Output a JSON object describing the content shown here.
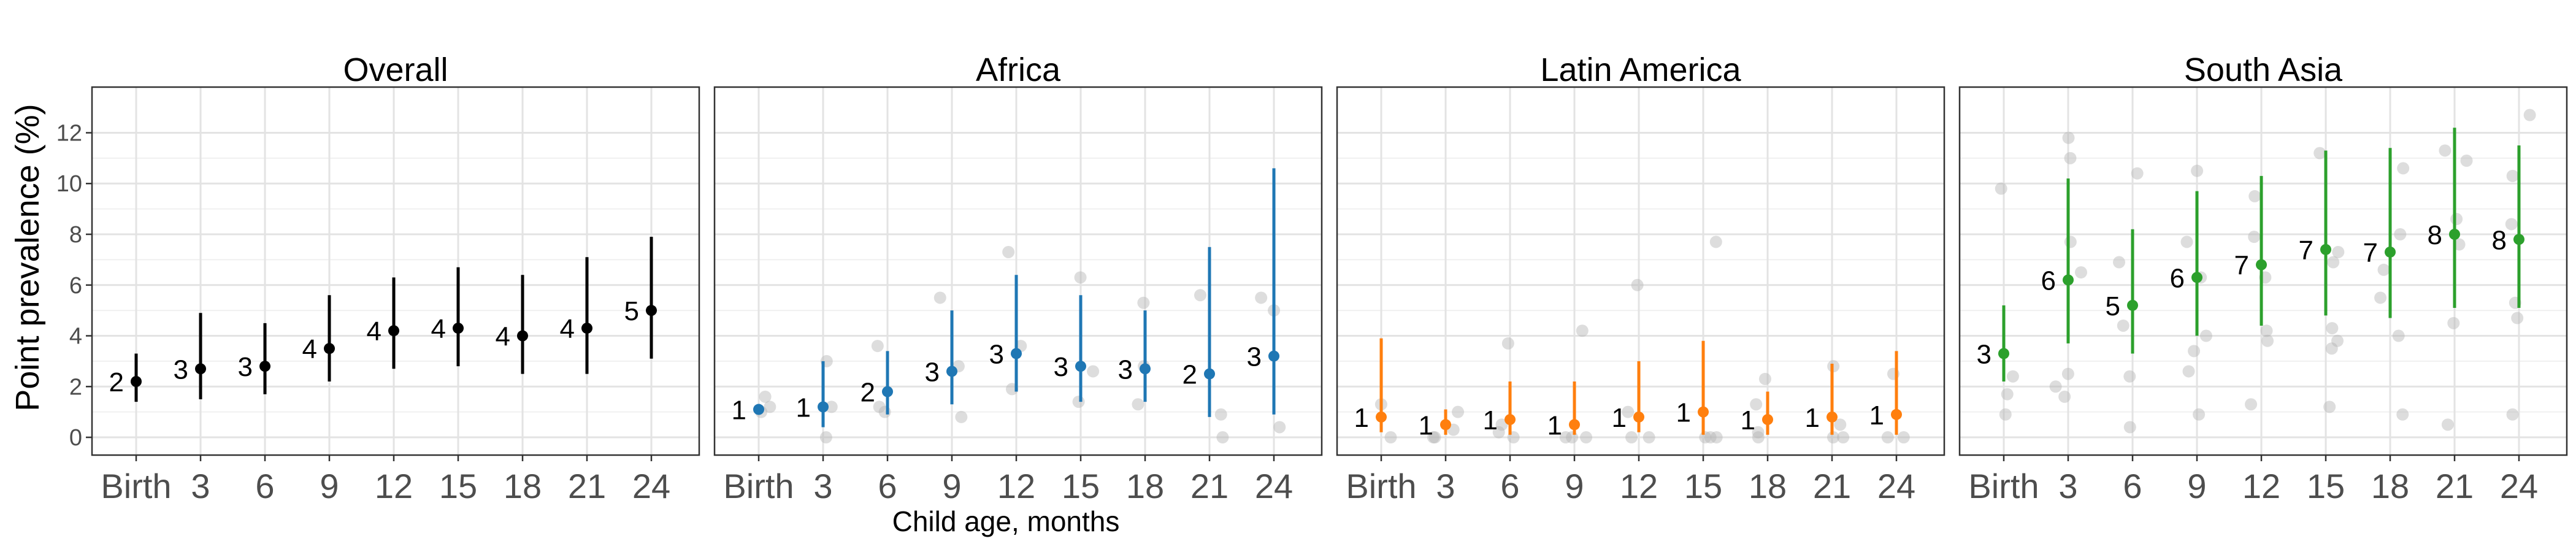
{
  "chart_data": {
    "type": "scatter",
    "ylabel": "Point prevalence (%)",
    "xlabel": "Child age, months",
    "ylim": [
      -0.7,
      13.8
    ],
    "yticks": [
      0,
      2,
      4,
      6,
      8,
      10,
      12
    ],
    "categories": [
      "Birth",
      "3",
      "6",
      "9",
      "12",
      "15",
      "18",
      "21",
      "24"
    ],
    "grid": true,
    "legend": "none",
    "panels": [
      {
        "title": "Overall",
        "color": "#000000",
        "points": [
          {
            "x": "Birth",
            "y": 2.2,
            "lo": 1.4,
            "hi": 3.3,
            "label": "2"
          },
          {
            "x": "3",
            "y": 2.7,
            "lo": 1.5,
            "hi": 4.9,
            "label": "3"
          },
          {
            "x": "6",
            "y": 2.8,
            "lo": 1.7,
            "hi": 4.5,
            "label": "3"
          },
          {
            "x": "9",
            "y": 3.5,
            "lo": 2.2,
            "hi": 5.6,
            "label": "4"
          },
          {
            "x": "12",
            "y": 4.2,
            "lo": 2.7,
            "hi": 6.3,
            "label": "4"
          },
          {
            "x": "15",
            "y": 4.3,
            "lo": 2.8,
            "hi": 6.7,
            "label": "4"
          },
          {
            "x": "18",
            "y": 4.0,
            "lo": 2.5,
            "hi": 6.4,
            "label": "4"
          },
          {
            "x": "21",
            "y": 4.3,
            "lo": 2.5,
            "hi": 7.1,
            "label": "4"
          },
          {
            "x": "24",
            "y": 5.0,
            "lo": 3.1,
            "hi": 7.9,
            "label": "5"
          }
        ],
        "sites": []
      },
      {
        "title": "Africa",
        "color": "#1f77b4",
        "points": [
          {
            "x": "Birth",
            "y": 1.1,
            "lo": 0.9,
            "hi": 1.3,
            "label": "1"
          },
          {
            "x": "3",
            "y": 1.2,
            "lo": 0.4,
            "hi": 3.0,
            "label": "1"
          },
          {
            "x": "6",
            "y": 1.8,
            "lo": 0.9,
            "hi": 3.4,
            "label": "2"
          },
          {
            "x": "9",
            "y": 2.6,
            "lo": 1.3,
            "hi": 5.0,
            "label": "3"
          },
          {
            "x": "12",
            "y": 3.3,
            "lo": 1.8,
            "hi": 6.4,
            "label": "3"
          },
          {
            "x": "15",
            "y": 2.8,
            "lo": 1.4,
            "hi": 5.6,
            "label": "3"
          },
          {
            "x": "18",
            "y": 2.7,
            "lo": 1.4,
            "hi": 5.0,
            "label": "3"
          },
          {
            "x": "21",
            "y": 2.5,
            "lo": 0.8,
            "hi": 7.5,
            "label": "2"
          },
          {
            "x": "24",
            "y": 3.2,
            "lo": 0.9,
            "hi": 10.6,
            "label": "3"
          }
        ],
        "sites": [
          {
            "x": "Birth",
            "ys": [
              1.0,
              1.2,
              1.6
            ]
          },
          {
            "x": "3",
            "ys": [
              0.0,
              1.2,
              3.0
            ]
          },
          {
            "x": "6",
            "ys": [
              1.0,
              1.2,
              3.6
            ]
          },
          {
            "x": "9",
            "ys": [
              0.8,
              2.8,
              5.5
            ]
          },
          {
            "x": "12",
            "ys": [
              1.9,
              3.6,
              7.3
            ]
          },
          {
            "x": "15",
            "ys": [
              1.4,
              2.6,
              6.3
            ]
          },
          {
            "x": "18",
            "ys": [
              1.3,
              2.8,
              5.3
            ]
          },
          {
            "x": "21",
            "ys": [
              0.0,
              0.9,
              5.6
            ]
          },
          {
            "x": "24",
            "ys": [
              0.4,
              5.0,
              5.5
            ]
          }
        ]
      },
      {
        "title": "Latin America",
        "color": "#ff7f0e",
        "points": [
          {
            "x": "Birth",
            "y": 0.8,
            "lo": 0.2,
            "hi": 3.9,
            "label": "1"
          },
          {
            "x": "3",
            "y": 0.5,
            "lo": 0.1,
            "hi": 1.1,
            "label": "1"
          },
          {
            "x": "6",
            "y": 0.7,
            "lo": 0.1,
            "hi": 2.2,
            "label": "1"
          },
          {
            "x": "9",
            "y": 0.5,
            "lo": 0.1,
            "hi": 2.2,
            "label": "1"
          },
          {
            "x": "12",
            "y": 0.8,
            "lo": 0.2,
            "hi": 3.0,
            "label": "1"
          },
          {
            "x": "15",
            "y": 1.0,
            "lo": 0.1,
            "hi": 3.8,
            "label": "1"
          },
          {
            "x": "18",
            "y": 0.7,
            "lo": 0.1,
            "hi": 1.8,
            "label": "1"
          },
          {
            "x": "21",
            "y": 0.8,
            "lo": 0.1,
            "hi": 2.9,
            "label": "1"
          },
          {
            "x": "24",
            "y": 0.9,
            "lo": 0.1,
            "hi": 3.4,
            "label": "1"
          }
        ],
        "sites": [
          {
            "x": "Birth",
            "ys": [
              0.0,
              1.3
            ]
          },
          {
            "x": "3",
            "ys": [
              0.0,
              0.0,
              0.3,
              1.0
            ]
          },
          {
            "x": "6",
            "ys": [
              0.0,
              0.2,
              0.5,
              3.7
            ]
          },
          {
            "x": "9",
            "ys": [
              0.0,
              0.0,
              0.0,
              4.2
            ]
          },
          {
            "x": "12",
            "ys": [
              0.0,
              0.0,
              1.0,
              6.0
            ]
          },
          {
            "x": "15",
            "ys": [
              0.0,
              0.0,
              0.0,
              7.7
            ]
          },
          {
            "x": "18",
            "ys": [
              0.0,
              0.2,
              1.3,
              2.3
            ]
          },
          {
            "x": "21",
            "ys": [
              0.0,
              0.0,
              0.5,
              2.8
            ]
          },
          {
            "x": "24",
            "ys": [
              0.0,
              0.0,
              2.5
            ]
          }
        ]
      },
      {
        "title": "South Asia",
        "color": "#2ca02c",
        "points": [
          {
            "x": "Birth",
            "y": 3.3,
            "lo": 2.2,
            "hi": 5.2,
            "label": "3"
          },
          {
            "x": "3",
            "y": 6.2,
            "lo": 3.7,
            "hi": 10.2,
            "label": "6"
          },
          {
            "x": "6",
            "y": 5.2,
            "lo": 3.3,
            "hi": 8.2,
            "label": "5"
          },
          {
            "x": "9",
            "y": 6.3,
            "lo": 4.0,
            "hi": 9.7,
            "label": "6"
          },
          {
            "x": "12",
            "y": 6.8,
            "lo": 4.4,
            "hi": 10.3,
            "label": "7"
          },
          {
            "x": "15",
            "y": 7.4,
            "lo": 4.8,
            "hi": 11.3,
            "label": "7"
          },
          {
            "x": "18",
            "y": 7.3,
            "lo": 4.7,
            "hi": 11.4,
            "label": "7"
          },
          {
            "x": "21",
            "y": 8.0,
            "lo": 5.1,
            "hi": 12.2,
            "label": "8"
          },
          {
            "x": "24",
            "y": 7.8,
            "lo": 5.1,
            "hi": 11.5,
            "label": "8"
          }
        ],
        "sites": [
          {
            "x": "Birth",
            "ys": [
              0.9,
              1.7,
              2.4,
              9.8
            ]
          },
          {
            "x": "3",
            "ys": [
              1.6,
              2.0,
              2.5,
              6.5,
              7.7,
              11.0,
              11.8
            ]
          },
          {
            "x": "6",
            "ys": [
              0.4,
              2.4,
              4.4,
              6.9,
              10.4
            ]
          },
          {
            "x": "9",
            "ys": [
              0.9,
              2.6,
              3.4,
              4.0,
              6.3,
              7.7,
              10.5
            ]
          },
          {
            "x": "12",
            "ys": [
              1.3,
              3.8,
              4.2,
              6.3,
              7.9,
              9.5
            ]
          },
          {
            "x": "15",
            "ys": [
              1.2,
              3.5,
              3.8,
              4.3,
              6.9,
              7.3,
              11.2
            ]
          },
          {
            "x": "18",
            "ys": [
              0.9,
              4.0,
              5.5,
              6.6,
              8.0,
              10.6
            ]
          },
          {
            "x": "21",
            "ys": [
              0.5,
              4.5,
              7.6,
              8.6,
              10.9,
              11.3
            ]
          },
          {
            "x": "24",
            "ys": [
              0.9,
              4.7,
              5.3,
              8.4,
              10.3,
              12.7
            ]
          }
        ]
      }
    ]
  }
}
